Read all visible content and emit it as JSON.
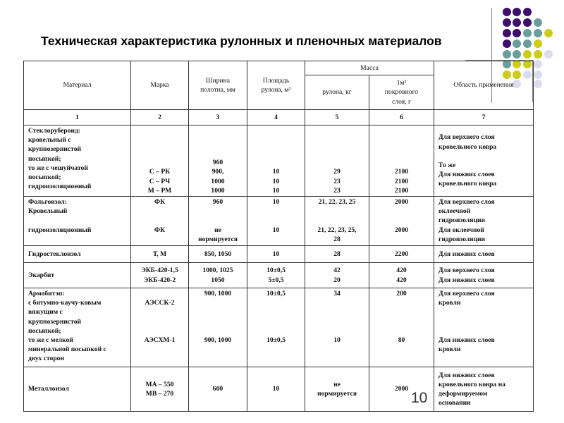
{
  "slide": {
    "title": "Техническая характеристика рулонных и пленочных материалов",
    "page_number": "10",
    "decor_colors": {
      "purple": "#3b0f6b",
      "teal": "#6a9e9c",
      "yellow": "#cccc1a",
      "lavender": "#dcdcee",
      "line": "#808080"
    }
  },
  "table": {
    "headers": {
      "material": "Материал",
      "brand": "Марка",
      "width": "Ширина\nполотна, мм",
      "area": "Площадь\nрулона, м²",
      "mass": "Масса",
      "mass_roll": "рулона, кг",
      "mass_m2": "1м²\nпокровного\nслоя, г",
      "application": "Область применения"
    },
    "column_numbers": [
      "1",
      "2",
      "3",
      "4",
      "5",
      "6",
      "7"
    ],
    "rows": [
      {
        "cells": [
          "Стеклорубероид:\nкровельный с\nкрупнозернистой\nпосыпкой;\nто же с чешуйчатой\nпосыпкой;\nгидроизоляционный",
          "С – РК\nС – РЧ\nМ – РМ",
          "960\n900,\n1000\n1000",
          "10\n10\n10",
          "29\n23\n23",
          "2100\n2100\n2100",
          "Для верхнего слоя\nкровельного ковра\n\nТо же\nДля нижних слоев\nкровельного ковра"
        ]
      },
      {
        "cells": [
          "Фольгоизол:\nКровельный\n\nгидроизоляционный",
          "ФК\n\n\nФК",
          "960\n\n\nне\nнормируется",
          "10\n\n\n10",
          "21, 22, 23, 25\n\n\n21, 22, 23, 25,\n28",
          "2000\n\n\n2000",
          "Для верхнего слоя\nоклеечной\nгидроизоляции\nДля оклеечной\nгидроизоляции"
        ]
      },
      {
        "cells": [
          "Гидростеклоизол",
          "Т, М",
          "850, 1050",
          "10",
          "28",
          "2200",
          "Для нижних слоев"
        ]
      },
      {
        "cells": [
          "Экарбит",
          "ЭКБ-420-1,5\nЭКБ-420-2",
          "1000, 1025\n1050",
          "10±0,5\n5±0,5",
          "42\n20",
          "420\n420",
          "Для верхнего слоя\nДля нижних слоев"
        ]
      },
      {
        "cells": [
          "Армобитэп:\nс битумно-каучу-ковым\nвяжущим с\nкрупнозернистой\nпосыпкой;\nто же с мелкой\nминеральной посыпкой с\nдвух сторон",
          "\nАЭССК-2\n\n\n\nАЭСХМ-1",
          "900, 1000\n\n\n\n\n900, 1000",
          "10±0,5\n\n\n\n\n10±0,5",
          "34\n\n\n\n\n10",
          "200\n\n\n\n\n80",
          "Для верхнего слоя\nкровли\n\n\n\nДля нижних слоев\nкровли"
        ]
      },
      {
        "cells": [
          "Металлоизол",
          "МА – 550\nМВ – 270",
          "600",
          "10",
          "не\nнормируется",
          "2000",
          "Для нижних слоев\nкровельного ковра на\nдеформируемом\nосновании"
        ]
      }
    ]
  }
}
